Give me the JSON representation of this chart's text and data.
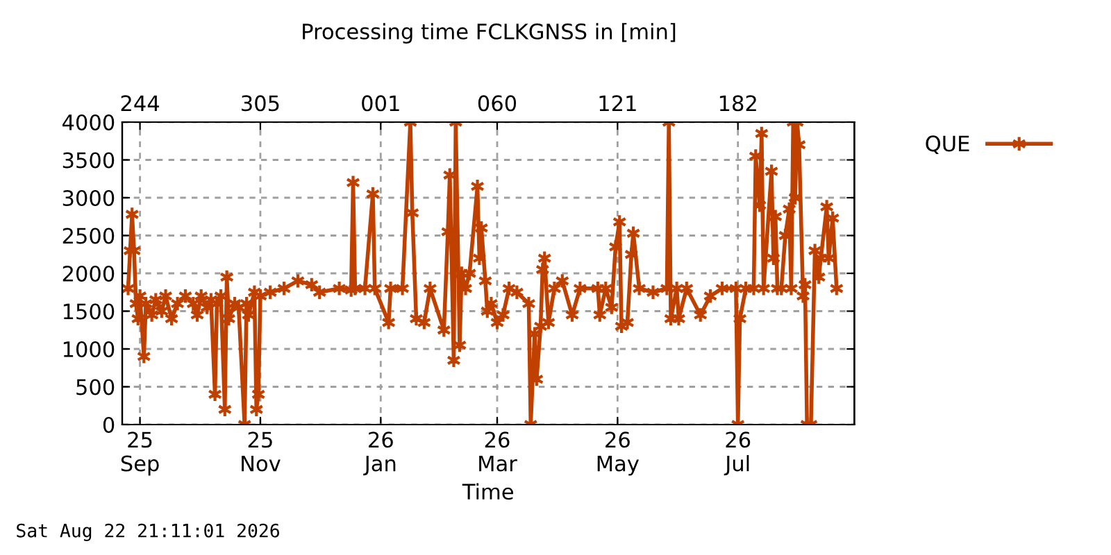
{
  "chart_data": {
    "type": "line",
    "title": "Processing time FCLKGNSS in [min]",
    "xlabel": "Time",
    "annotations": [
      "Sat Aug 22 21:11:01 2026"
    ],
    "xlim": [
      "2025-08-23",
      "2026-08-29"
    ],
    "xticks": [
      {
        "value": "2025-09-01",
        "label": "25\nSep"
      },
      {
        "value": "2025-11-01",
        "label": "25\nNov"
      },
      {
        "value": "2026-01-01",
        "label": "26\nJan"
      },
      {
        "value": "2026-03-01",
        "label": "26\nMar"
      },
      {
        "value": "2026-05-01",
        "label": "26\nMay"
      },
      {
        "value": "2026-07-01",
        "label": "26\nJul"
      }
    ],
    "x2lim": [
      "2025-08-23",
      "2026-08-29"
    ],
    "x2ticks": [
      {
        "value": "2025-09-01",
        "label": "244"
      },
      {
        "value": "2025-11-01",
        "label": "305"
      },
      {
        "value": "2026-01-01",
        "label": "001"
      },
      {
        "value": "2026-03-01",
        "label": "060"
      },
      {
        "value": "2026-05-01",
        "label": "121"
      },
      {
        "value": "2026-07-01",
        "label": "182"
      }
    ],
    "ylim": [
      0,
      4000
    ],
    "yticks": [
      0,
      500,
      1000,
      1500,
      2000,
      2500,
      3000,
      3500,
      4000
    ],
    "grid": true,
    "legend": "top right",
    "marker": "cross",
    "line_style": "solid",
    "series": [
      {
        "name": "QUE",
        "color": "#c04000",
        "x": [
          "2025-08-26",
          "2025-08-27",
          "2025-08-28",
          "2025-08-29",
          "2025-08-30",
          "2025-08-31",
          "2025-09-01",
          "2025-09-03",
          "2025-09-04",
          "2025-09-07",
          "2025-09-09",
          "2025-09-12",
          "2025-09-14",
          "2025-09-17",
          "2025-09-20",
          "2025-09-24",
          "2025-09-28",
          "2025-09-30",
          "2025-10-02",
          "2025-10-05",
          "2025-10-07",
          "2025-10-09",
          "2025-10-10",
          "2025-10-12",
          "2025-10-14",
          "2025-10-15",
          "2025-10-16",
          "2025-10-19",
          "2025-10-21",
          "2025-10-24",
          "2025-10-25",
          "2025-10-26",
          "2025-10-29",
          "2025-10-30",
          "2025-10-31",
          "2025-11-01",
          "2025-11-06",
          "2025-11-13",
          "2025-11-20",
          "2025-11-27",
          "2025-12-01",
          "2025-12-11",
          "2025-12-17",
          "2025-12-18",
          "2025-12-19",
          "2025-12-24",
          "2025-12-28",
          "2025-12-29",
          "2026-01-05",
          "2026-01-06",
          "2026-01-12",
          "2026-01-16",
          "2026-01-17",
          "2026-01-19",
          "2026-01-23",
          "2026-01-26",
          "2026-02-02",
          "2026-02-04",
          "2026-02-05",
          "2026-02-07",
          "2026-02-08",
          "2026-02-10",
          "2026-02-11",
          "2026-02-13",
          "2026-02-15",
          "2026-02-19",
          "2026-02-20",
          "2026-02-21",
          "2026-02-23",
          "2026-02-24",
          "2026-02-26",
          "2026-03-01",
          "2026-03-04",
          "2026-03-07",
          "2026-03-11",
          "2026-03-17",
          "2026-03-18",
          "2026-03-20",
          "2026-03-21",
          "2026-03-23",
          "2026-03-24",
          "2026-03-25",
          "2026-03-27",
          "2026-03-30",
          "2026-04-03",
          "2026-04-08",
          "2026-04-12",
          "2026-04-21",
          "2026-04-22",
          "2026-04-25",
          "2026-04-28",
          "2026-04-30",
          "2026-05-02",
          "2026-05-03",
          "2026-05-06",
          "2026-05-08",
          "2026-05-09",
          "2026-05-12",
          "2026-05-19",
          "2026-05-26",
          "2026-05-27",
          "2026-05-28",
          "2026-05-31",
          "2026-06-01",
          "2026-06-05",
          "2026-06-12",
          "2026-06-17",
          "2026-06-23",
          "2026-06-30",
          "2026-07-01",
          "2026-07-02",
          "2026-07-05",
          "2026-07-09",
          "2026-07-10",
          "2026-07-12",
          "2026-07-13",
          "2026-07-14",
          "2026-07-18",
          "2026-07-19",
          "2026-07-20",
          "2026-07-21",
          "2026-07-23",
          "2026-07-25",
          "2026-07-27",
          "2026-07-28",
          "2026-07-29",
          "2026-07-30",
          "2026-07-31",
          "2026-08-01",
          "2026-08-03",
          "2026-08-04",
          "2026-08-05",
          "2026-08-07",
          "2026-08-09",
          "2026-08-11",
          "2026-08-12",
          "2026-08-15",
          "2026-08-16",
          "2026-08-18",
          "2026-08-20"
        ],
        "values": [
          1800,
          2300,
          2780,
          2300,
          1600,
          1400,
          1700,
          900,
          1600,
          1450,
          1650,
          1500,
          1700,
          1400,
          1600,
          1700,
          1600,
          1450,
          1700,
          1550,
          1650,
          400,
          1600,
          1700,
          200,
          1950,
          1400,
          1600,
          1550,
          0,
          1600,
          1450,
          1750,
          200,
          400,
          1700,
          1750,
          1800,
          1900,
          1850,
          1750,
          1800,
          1780,
          3200,
          1800,
          1800,
          3050,
          1800,
          1350,
          1800,
          1800,
          4000,
          2800,
          1400,
          1350,
          1800,
          1250,
          2550,
          3300,
          850,
          4000,
          1050,
          2000,
          1800,
          2000,
          3150,
          2200,
          2600,
          1900,
          1500,
          1600,
          1350,
          1450,
          1800,
          1750,
          1600,
          0,
          1200,
          600,
          1300,
          2050,
          2200,
          1350,
          1800,
          1900,
          1450,
          1800,
          1800,
          1450,
          1800,
          1550,
          2350,
          2680,
          1300,
          1350,
          2250,
          2530,
          1800,
          1750,
          1800,
          4000,
          1400,
          1800,
          1400,
          1800,
          1450,
          1700,
          1800,
          1800,
          0,
          1400,
          1800,
          1800,
          3550,
          2900,
          3850,
          1800,
          3350,
          2200,
          2750,
          1800,
          1800,
          2500,
          2850,
          1800,
          4000,
          3000,
          4000,
          3700,
          1700,
          1850,
          0,
          0,
          2300,
          1950,
          2200,
          2880,
          2200,
          2730,
          1800
        ]
      }
    ]
  }
}
